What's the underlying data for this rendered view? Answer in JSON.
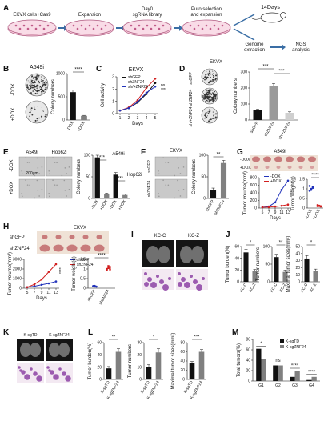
{
  "panelA": {
    "letter": "A",
    "steps": [
      "EKVX cells+Cas9",
      "Expansion",
      "Day0\nsgRNA library",
      "Puro selection\nand expansion",
      "14Days",
      "Genome\nextraction",
      "NGS\nanalysis"
    ]
  },
  "panelB": {
    "letter": "B",
    "cell": "A549i",
    "rowDox": [
      "-DOX",
      "+DOX"
    ],
    "chart_data": {
      "type": "bar",
      "categories": [
        "-DOX",
        "+DOX"
      ],
      "values": [
        600,
        90
      ],
      "errors": [
        50,
        10
      ],
      "ylabel": "Colony numbers",
      "ylim": [
        0,
        1000
      ],
      "yticks": [
        0,
        500,
        1000
      ],
      "sig": "****",
      "colors": [
        "#111111",
        "#808080"
      ]
    }
  },
  "panelC": {
    "letter": "C",
    "title": "EKVX",
    "chart_data": {
      "type": "line",
      "x": [
        1,
        2,
        3,
        4,
        5
      ],
      "xlabel": "Days",
      "ylabel": "Cell activity",
      "ylim": [
        0,
        3
      ],
      "yticks": [
        0,
        1,
        2,
        3
      ],
      "series": [
        {
          "name": "shGFP",
          "values": [
            0.25,
            0.45,
            0.9,
            1.6,
            2.5
          ],
          "color": "#111111"
        },
        {
          "name": "shZNF24",
          "values": [
            0.25,
            0.5,
            1.1,
            2.1,
            2.85
          ],
          "color": "#d21f1f"
        },
        {
          "name": "sh/+ZNF24",
          "values": [
            0.25,
            0.45,
            0.95,
            1.7,
            2.2
          ],
          "color": "#2233bb"
        }
      ],
      "sig": [
        "ns",
        "***"
      ]
    }
  },
  "panelD": {
    "letter": "D",
    "cell": "EKVX",
    "rowLabels": [
      "shGFP",
      "shZNF24",
      "sh/+ZNF24"
    ],
    "chart_data": {
      "type": "bar",
      "categories": [
        "shGFP",
        "shZNF24",
        "sh/+ZNF24"
      ],
      "values": [
        60,
        210,
        45
      ],
      "errors": [
        8,
        18,
        6
      ],
      "ylabel": "Colony numbers",
      "ylim": [
        0,
        300
      ],
      "yticks": [
        0,
        100,
        200,
        300
      ],
      "sig": [
        "***",
        "***"
      ],
      "colors": [
        "#111111",
        "#9a9a9a",
        "#cfcfcf"
      ]
    }
  },
  "panelE": {
    "letter": "E",
    "cells": [
      "A549i",
      "Hop62i"
    ],
    "rowDox": [
      "-DOX",
      "+DOX"
    ],
    "scale": "200μm",
    "chart_data": {
      "type": "bar",
      "groups": [
        "A549i",
        "Hop62i"
      ],
      "categories": [
        "-DOX",
        "+DOX",
        "-DOX",
        "+DOX"
      ],
      "values": [
        95,
        10,
        55,
        8
      ],
      "errors": [
        5,
        2,
        5,
        2
      ],
      "ylabel": "Colony numbers",
      "ylim": [
        0,
        100
      ],
      "yticks": [
        0,
        50,
        100
      ],
      "sig": [
        "***",
        "***"
      ],
      "colors": [
        "#111111",
        "#808080",
        "#111111",
        "#808080"
      ]
    }
  },
  "panelF": {
    "letter": "F",
    "cell": "EKVX",
    "rowLabels": [
      "shGFP",
      "shZNF24"
    ],
    "chart_data": {
      "type": "bar",
      "categories": [
        "shGFP",
        "shZNF24"
      ],
      "values": [
        20,
        82
      ],
      "errors": [
        4,
        6
      ],
      "ylabel": "Colony numbers",
      "ylim": [
        0,
        100
      ],
      "yticks": [
        0,
        50,
        100
      ],
      "sig": "**",
      "colors": [
        "#111111",
        "#808080"
      ]
    }
  },
  "panelG": {
    "letter": "G",
    "cell": "A549i",
    "rowDox": [
      "-DOX",
      "+DOX"
    ],
    "line": {
      "x": [
        5,
        7,
        9,
        11,
        13
      ],
      "xlabel": "Days",
      "ylabel": "Tumor volume(mm³)",
      "ylim": [
        0,
        800
      ],
      "yticks": [
        0,
        200,
        400,
        600,
        800
      ],
      "series": [
        {
          "name": "-DOX",
          "values": [
            20,
            40,
            150,
            480,
            720
          ],
          "color": "#2233bb"
        },
        {
          "name": "+DOX",
          "values": [
            20,
            25,
            40,
            60,
            90
          ],
          "color": "#d21f1f"
        }
      ],
      "sig": "****"
    },
    "scatter": {
      "ylabel": "Tumor weight(g)",
      "ylim": [
        0,
        1.5
      ],
      "yticks": [
        0,
        0.5,
        1.0,
        1.5
      ],
      "categories": [
        "-DOX",
        "+DOX"
      ],
      "sig": "****",
      "points": [
        [
          0.9,
          1.0,
          1.1,
          1.15,
          0.95,
          1.05
        ],
        [
          0.1,
          0.12,
          0.08,
          0.15,
          0.11,
          0.09
        ]
      ],
      "colors": [
        "#2233bb",
        "#d21f1f"
      ]
    }
  },
  "panelH": {
    "letter": "H",
    "cell": "EKVX",
    "rowLabels": [
      "shGFP",
      "shZNF24"
    ],
    "line": {
      "x": [
        5,
        7,
        9,
        11,
        13
      ],
      "xlabel": "Days",
      "ylabel": "Tumor volume(mm³)",
      "ylim": [
        0,
        3000
      ],
      "yticks": [
        0,
        1000,
        2000,
        3000
      ],
      "series": [
        {
          "name": "shGFP",
          "values": [
            100,
            200,
            350,
            500,
            700
          ],
          "color": "#2233bb"
        },
        {
          "name": "shZNF24",
          "values": [
            100,
            400,
            900,
            1700,
            2500
          ],
          "color": "#d21f1f"
        }
      ],
      "sig": "****"
    },
    "scatter": {
      "ylabel": "Tumor weight(g)",
      "ylim": [
        0,
        1.5
      ],
      "yticks": [
        0,
        0.5,
        1.0,
        1.5
      ],
      "categories": [
        "shGFP",
        "shZNF24"
      ],
      "sig": "****",
      "points": [
        [
          0.1,
          0.12,
          0.08,
          0.11,
          0.09
        ],
        [
          0.95,
          1.05,
          1.1,
          1.0,
          1.15,
          0.98
        ]
      ],
      "colors": [
        "#2233bb",
        "#d21f1f"
      ]
    }
  },
  "panelI": {
    "letter": "I",
    "labels": [
      "KC-C",
      "KC-Z"
    ]
  },
  "panelJ": {
    "letter": "J",
    "charts": [
      {
        "ylabel": "Tumor burden(%)",
        "ylim": [
          0,
          60
        ],
        "yticks": [
          0,
          20,
          40,
          60
        ],
        "categories": [
          "KC-C",
          "KC-Z"
        ],
        "values": [
          50,
          18
        ],
        "errors": [
          5,
          3
        ],
        "sig": "*"
      },
      {
        "ylabel": "Tumor numbers",
        "ylim": [
          0,
          100
        ],
        "yticks": [
          0,
          50,
          100
        ],
        "categories": [
          "KC-C",
          "KC-Z"
        ],
        "values": [
          70,
          28
        ],
        "errors": [
          8,
          5
        ],
        "sig": "**"
      },
      {
        "ylabel": "Maximal tumor sizes(mm²)",
        "ylim": [
          0,
          50
        ],
        "yticks": [
          0,
          10,
          20,
          30,
          40,
          50
        ],
        "categories": [
          "KC-C",
          "KC-Z"
        ],
        "values": [
          33,
          15
        ],
        "errors": [
          4,
          3
        ],
        "sig": "*"
      }
    ],
    "colors": [
      "#111111",
      "#808080"
    ]
  },
  "panelK": {
    "letter": "K",
    "labels": [
      "K-sgTD",
      "K-sgZNF24"
    ]
  },
  "panelL": {
    "letter": "L",
    "charts": [
      {
        "ylabel": "Tumor burden(%)",
        "ylim": [
          0,
          60
        ],
        "yticks": [
          0,
          20,
          40,
          60
        ],
        "categories": [
          "K-sgTD",
          "K-sgZNF24"
        ],
        "values": [
          18,
          45
        ],
        "errors": [
          3,
          5
        ],
        "sig": "**"
      },
      {
        "ylabel": "Tumor numbers",
        "ylim": [
          0,
          30
        ],
        "yticks": [
          0,
          10,
          20,
          30
        ],
        "categories": [
          "K-sgTD",
          "K-sgZNF24"
        ],
        "values": [
          10,
          22
        ],
        "errors": [
          2,
          3
        ],
        "sig": "*"
      },
      {
        "ylabel": "Maximal tumor sizes(mm²)",
        "ylim": [
          0,
          80
        ],
        "yticks": [
          0,
          20,
          40,
          60,
          80
        ],
        "categories": [
          "K-sgTD",
          "K-sgZNF24"
        ],
        "values": [
          35,
          60
        ],
        "errors": [
          4,
          5
        ],
        "sig": "***"
      }
    ],
    "colors": [
      "#111111",
      "#808080"
    ]
  },
  "panelM": {
    "letter": "M",
    "chart_data": {
      "type": "bar",
      "categories": [
        "G1",
        "G2",
        "G3",
        "G4"
      ],
      "ylabel": "Total tumors(%)",
      "ylim": [
        0,
        80
      ],
      "yticks": [
        0,
        20,
        40,
        60,
        80
      ],
      "series": [
        {
          "name": "K-sgTD",
          "values": [
            62,
            30,
            8,
            2
          ],
          "color": "#111111"
        },
        {
          "name": "K-sgZNF24",
          "values": [
            42,
            30,
            20,
            8
          ],
          "color": "#808080"
        }
      ],
      "sig": [
        "*",
        "ns",
        "****",
        "****"
      ]
    }
  }
}
